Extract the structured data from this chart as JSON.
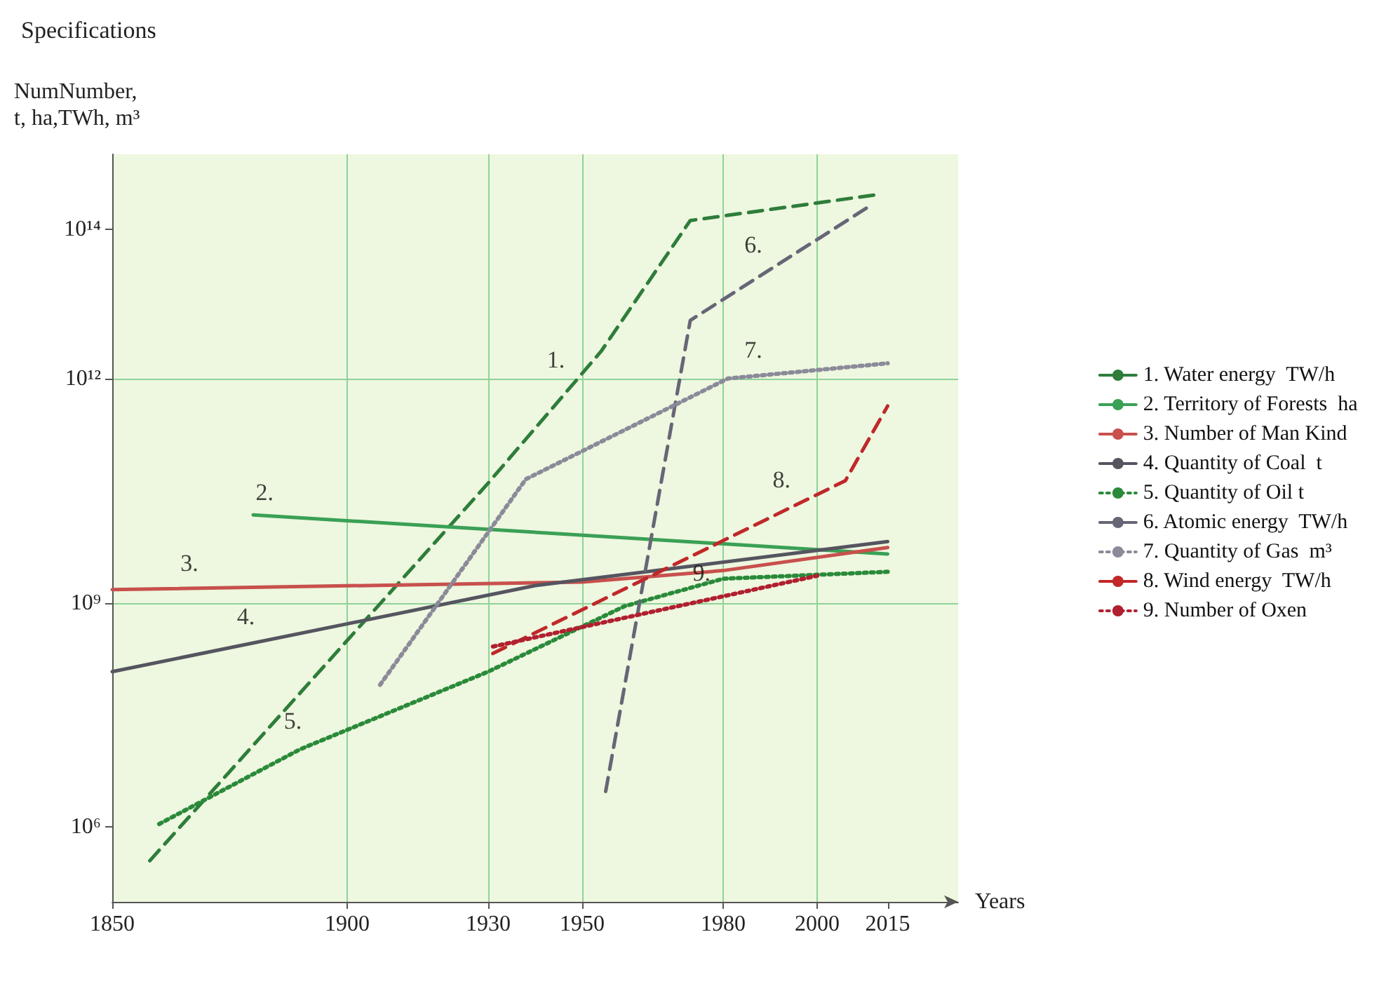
{
  "chart_data": {
    "type": "line",
    "title": "Specifications",
    "xlabel": "Years",
    "ylabel": "NumNumber,\nt, ha,TWh, m³",
    "xlim": [
      1850,
      2030
    ],
    "xticks": [
      1850,
      1900,
      1930,
      1950,
      1980,
      2000,
      2015
    ],
    "ylim": [
      100000,
      1000000000000000
    ],
    "yticks": [
      {
        "value": 1000000,
        "label": "10⁶"
      },
      {
        "value": 1000000000,
        "label": "10⁹"
      },
      {
        "value": 1000000000000,
        "label": "10¹²"
      },
      {
        "value": 100000000000000,
        "label": "10¹⁴"
      }
    ],
    "log": "y",
    "grid": true,
    "legend": "right",
    "marker": "none",
    "series": [
      {
        "name": "1. Water energy  TW/h",
        "color": "#2e7d3a",
        "line_style": "dashed",
        "x": [
          1858,
          1930,
          1954,
          1973,
          2013
        ],
        "values": [
          355000,
          40000000000,
          2300000000000,
          130000000000000,
          290000000000000
        ]
      },
      {
        "name": "2. Territory of Forests  ha",
        "color": "#3aa055",
        "line_style": "solid",
        "x": [
          1880,
          2015
        ],
        "values": [
          15000000000,
          4500000000
        ]
      },
      {
        "name": "3. Number of Man Kind",
        "color": "#c8504d",
        "line_style": "solid",
        "x": [
          1850,
          1950,
          1980,
          2015
        ],
        "values": [
          1500000000,
          1900000000,
          2700000000,
          5500000000
        ]
      },
      {
        "name": "4. Quantity of Coal  t",
        "color": "#555560",
        "line_style": "solid",
        "x": [
          1850,
          1940,
          2015
        ],
        "values": [
          120000000,
          1700000000,
          6600000000
        ]
      },
      {
        "name": "5. Quantity of Oil t",
        "color": "#2a8a3a",
        "line_style": "dotted",
        "x": [
          1860,
          1890,
          1930,
          1959,
          1980,
          2015
        ],
        "values": [
          1100000,
          11000000,
          120000000,
          900000000,
          2100000000,
          2600000000
        ]
      },
      {
        "name": "6. Atomic energy  TW/h",
        "color": "#666677",
        "line_style": "dashed",
        "x": [
          1955,
          1973,
          2011
        ],
        "values": [
          3000000,
          6000000000000,
          200000000000000
        ]
      },
      {
        "name": "7. Quantity of Gas  m³",
        "color": "#8a8a99",
        "line_style": "dotted",
        "x": [
          1907,
          1938,
          1981,
          2015
        ],
        "values": [
          80000000,
          45000000000,
          1000000000000,
          1600000000000
        ]
      },
      {
        "name": "8. Wind energy  TW/h",
        "color": "#c0282a",
        "line_style": "dashed",
        "x": [
          1931,
          2006,
          2015
        ],
        "values": [
          210000000,
          43000000000,
          430000000000
        ]
      },
      {
        "name": "9. Number of Oxen",
        "color": "#b02030",
        "line_style": "dotted",
        "x": [
          1931,
          2000
        ],
        "values": [
          260000000,
          2300000000
        ]
      }
    ],
    "annotations": [
      {
        "text": "1.",
        "x": 1948,
        "y": 840000000000
      },
      {
        "text": "2.",
        "x": 1886,
        "y": 14000000000
      },
      {
        "text": "3.",
        "x": 1870,
        "y": 1600000000
      },
      {
        "text": "4.",
        "x": 1882,
        "y": 310000000
      },
      {
        "text": "5.",
        "x": 1892,
        "y": 12400000
      },
      {
        "text": "6.",
        "x": 1990,
        "y": 29000000000000
      },
      {
        "text": "7.",
        "x": 1990,
        "y": 1130000000000
      },
      {
        "text": "8.",
        "x": 1996,
        "y": 21000000000
      },
      {
        "text": "9.",
        "x": 1979,
        "y": 1190000000
      }
    ]
  }
}
